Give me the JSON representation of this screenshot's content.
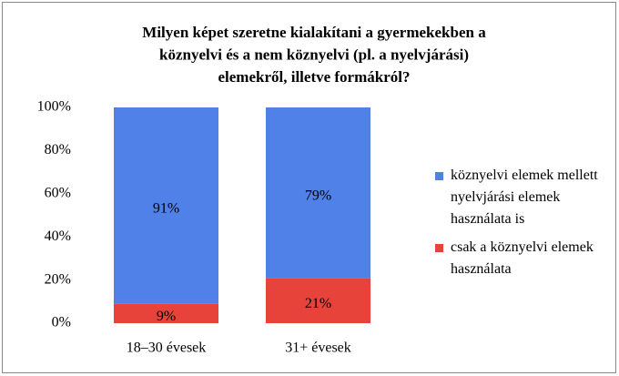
{
  "chart_data": {
    "type": "stacked_bar",
    "title": [
      "Milyen képet szeretne kialakítani a gyermekekben a",
      "köznyelvi és a nem köznyelvi (pl. a nyelvjárási)",
      "elemekről, illetve formákról?"
    ],
    "categories": [
      "18–30 évesek",
      "31+ évesek"
    ],
    "series": [
      {
        "name": "csak a köznyelvi elemek használata",
        "color": "#e8433a",
        "values": [
          9,
          21
        ],
        "value_labels": [
          "9%",
          "21%"
        ]
      },
      {
        "name": "köznyelvi elemek mellett nyelvjárási elemek használata is",
        "color": "#4f81e9",
        "values": [
          91,
          79
        ],
        "value_labels": [
          "91%",
          "79%"
        ]
      }
    ],
    "ylim": [
      0,
      100
    ],
    "yticks": [
      {
        "value": 0,
        "label": "0%"
      },
      {
        "value": 20,
        "label": "20%"
      },
      {
        "value": 40,
        "label": "40%"
      },
      {
        "value": 60,
        "label": "60%"
      },
      {
        "value": 80,
        "label": "80%"
      },
      {
        "value": 100,
        "label": "100%"
      }
    ],
    "legend": "right"
  }
}
